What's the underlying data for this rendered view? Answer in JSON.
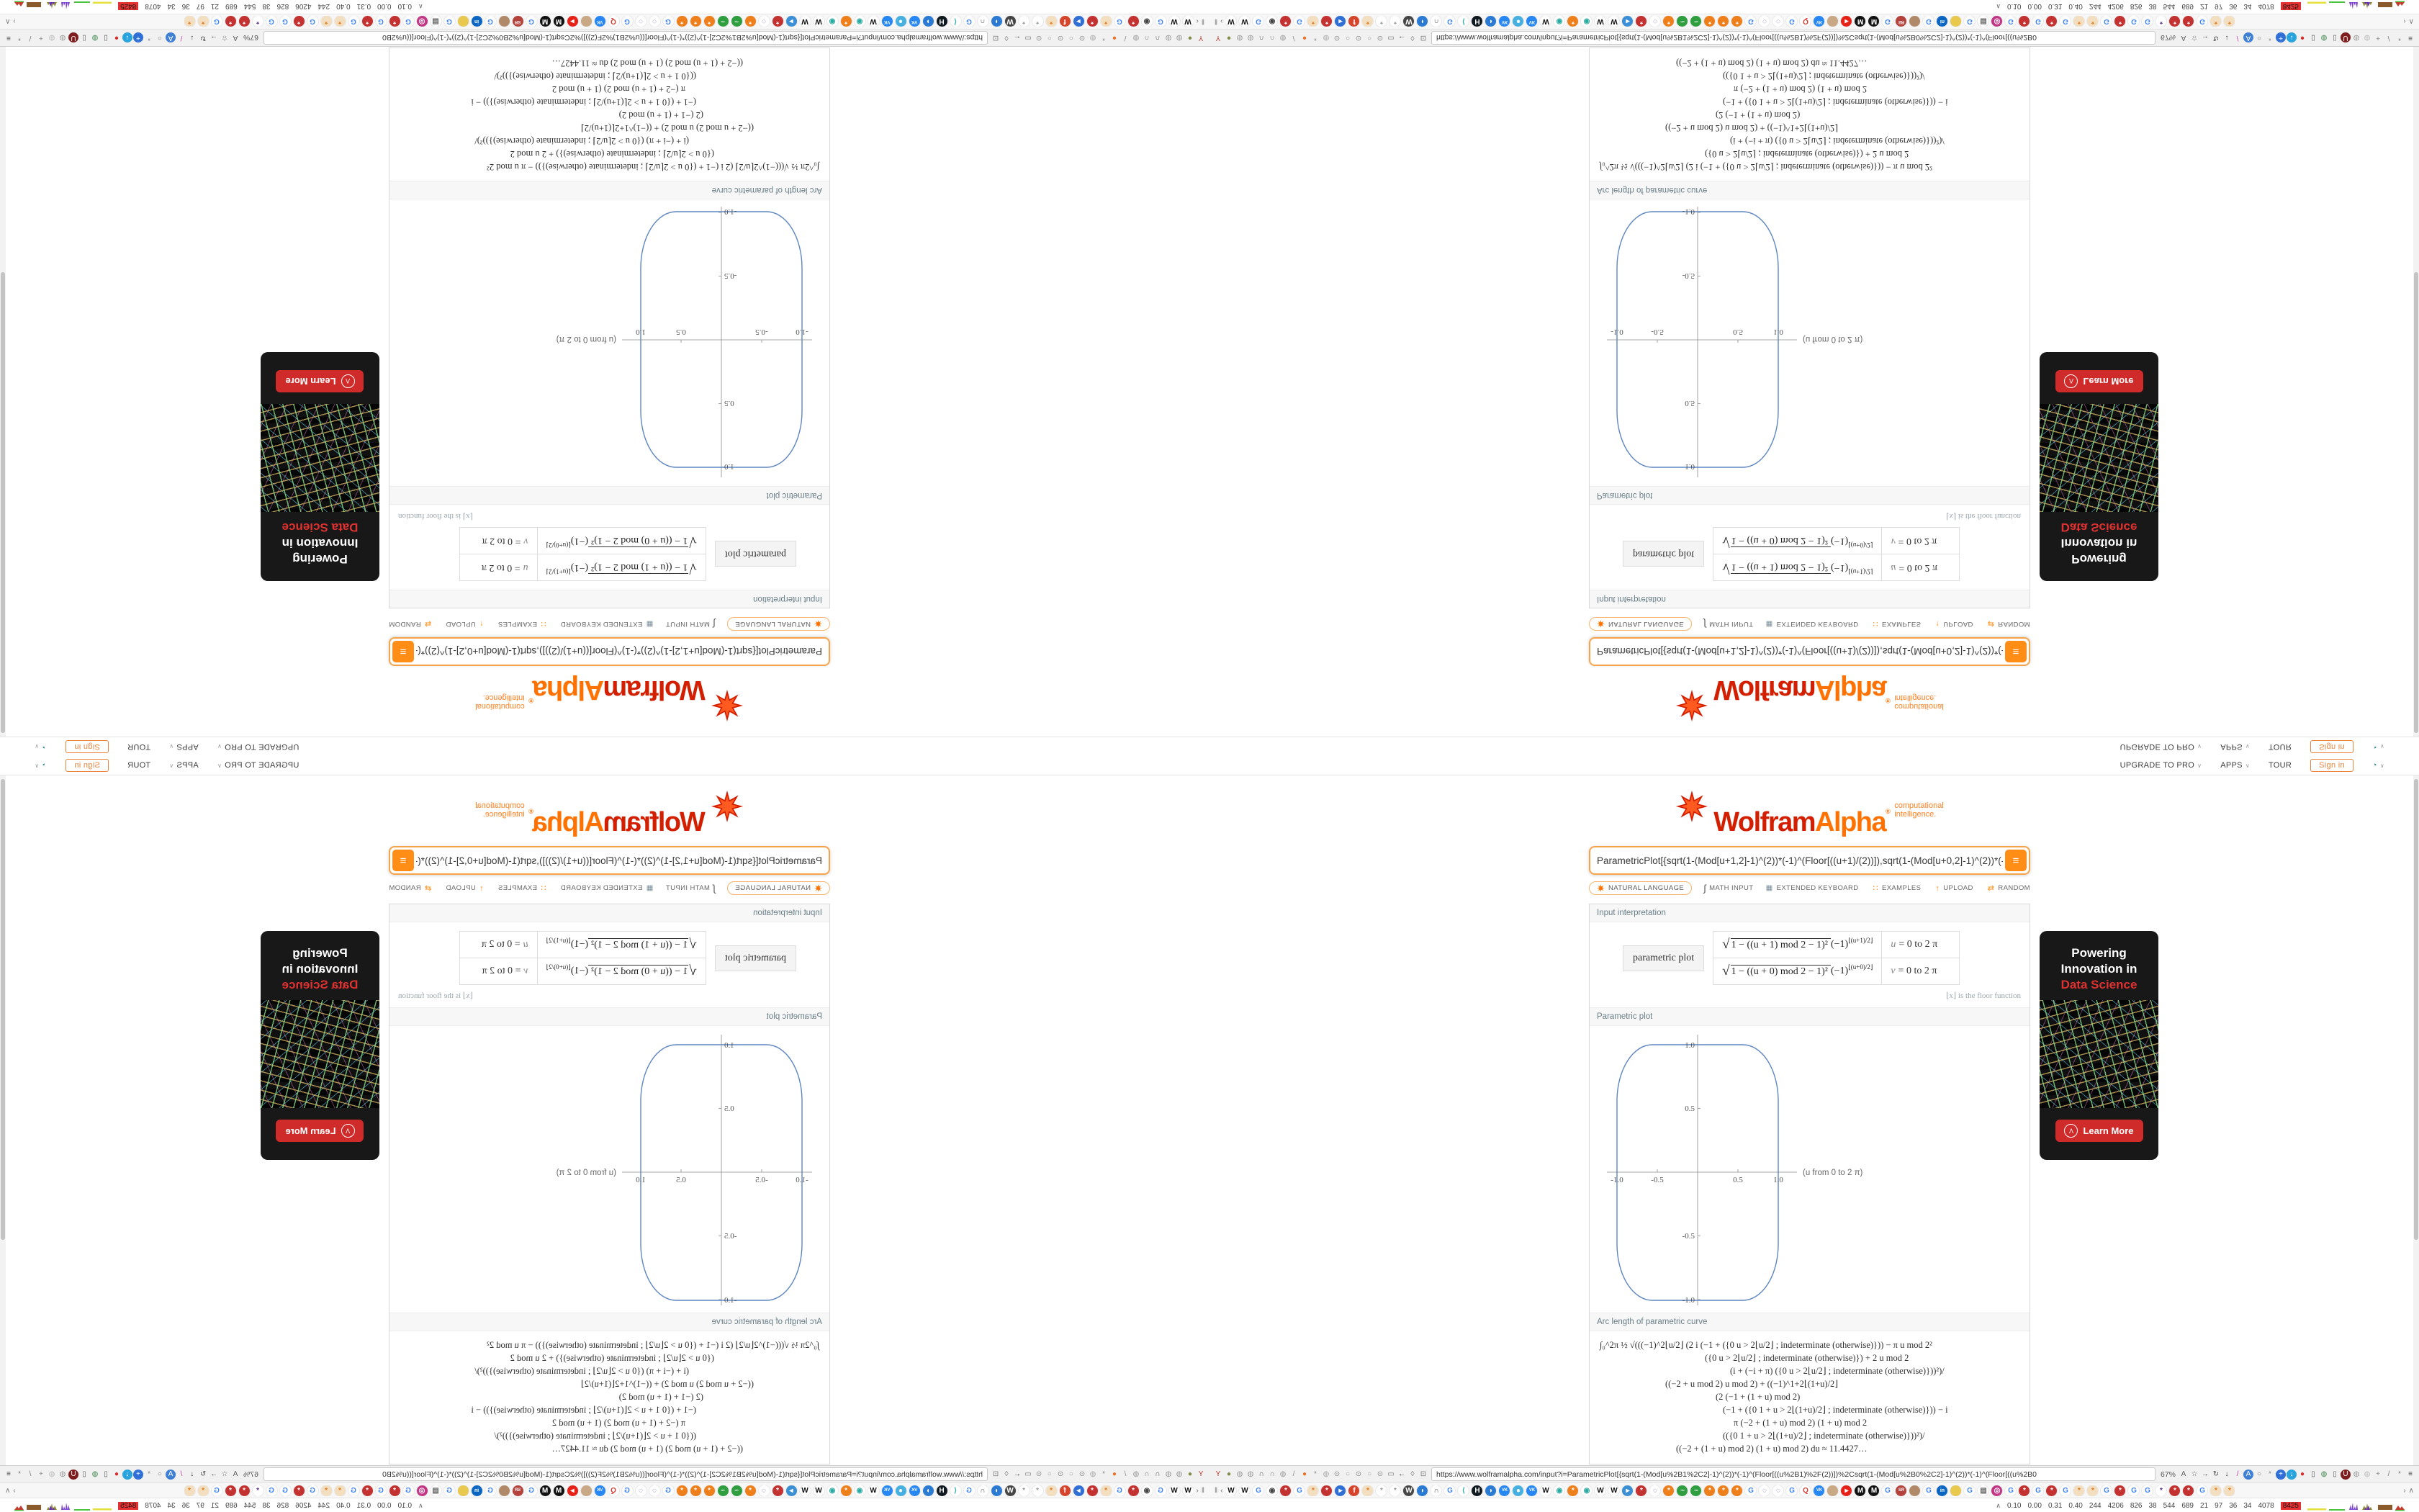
{
  "site_header": {
    "upgrade_to_pro": "UPGRADE TO PRO",
    "apps": "APPS",
    "tour": "TOUR",
    "sign_in": "Sign in"
  },
  "logo": {
    "wolfram": "Wolfram",
    "alpha": "Alpha",
    "reg": "®",
    "tagline1": "computational",
    "tagline2": "intelligence."
  },
  "query": {
    "text": "ParametricPlot[{sqrt(1-(Mod[u+1,2]-1)^(2))*(-1)^(Floor[((u+1)/(2))]),sqrt(1-(Mod[u+0,2]-1)^(2))*(-1)^(Floo",
    "compute_label": "≡"
  },
  "input_bar": {
    "natural_language": "NATURAL LANGUAGE",
    "math_input": "MATH INPUT",
    "extended_keyboard": "EXTENDED KEYBOARD",
    "examples": "EXAMPLES",
    "upload": "UPLOAD",
    "random": "RANDOM"
  },
  "icons": {
    "chevron": "∨",
    "globe": "◔",
    "math_input": "∫",
    "keyboard": "▦",
    "examples": "∷",
    "upload": "↑",
    "random": "⇄",
    "bm_prev": "‖",
    "bm_back": "‹",
    "bm_more": "›",
    "bm_up": "∧",
    "monitor_up": "∧",
    "wolf": "Λ"
  },
  "pods": {
    "interp": {
      "title": "Input interpretation",
      "label": "parametric plot",
      "rows": [
        {
          "sqrt": "√",
          "body": "1 − ((u + 1) mod 2 − 1)²",
          "tail": " (−1)",
          "sup": "⌊(u+1)/2⌋",
          "var": "u",
          "range": "= 0 to 2 π"
        },
        {
          "sqrt": "√",
          "body": "1 − ((u + 0) mod 2 − 1)²",
          "tail": " (−1)",
          "sup": "⌊(u+0)/2⌋",
          "var": "v",
          "range": "= 0 to 2 π"
        }
      ],
      "note": "⌊x⌋ is the floor function"
    },
    "plot": {
      "title": "Parametric plot",
      "xlabel": "(u from 0 to 2 π)",
      "xt": [
        "-1.0",
        "-0.5",
        "0.5",
        "1.0"
      ],
      "yt": [
        "-1.0",
        "-0.5",
        "0.5",
        "1.0"
      ],
      "chart_data": {
        "type": "line",
        "title": "Parametric plot",
        "x_range": [
          -1,
          1
        ],
        "y_range": [
          -1,
          1
        ],
        "u_range": "0 to 2 pi",
        "curve": "rounded square through (1,0),(0.97,0.66),(0.87,0.87),(0.66,0.97),(0,1) and symmetric points",
        "color": "#5f86c0"
      }
    },
    "arc": {
      "title": "Arc length of parametric curve",
      "lines": [
        {
          "t": "∫₀^2π  ½ √(((−1)^2⌊u/2⌋ (2 i (−1 + ({0   u > 2⌊u/2⌋ ;  indeterminate  (otherwise)})) − π u mod 2²",
          "m": 4
        },
        {
          "t": "({0   u > 2⌊u/2⌋ ;  indeterminate  (otherwise)}) + 2 u mod 2",
          "m": 150
        },
        {
          "t": "(i + (−i + π) ({0   u > 2⌊u/2⌋ ;  indeterminate  (otherwise)}))²)/",
          "m": 185
        },
        {
          "t": "((−2 + u mod 2) u mod 2) + ((−1)^1+2⌊(1+u)/2⌋",
          "m": 95
        },
        {
          "t": "(2 (−1 + (1 + u) mod 2)",
          "m": 165
        },
        {
          "t": "(−1 + ({0   1 + u > 2⌊(1+u)/2⌋ ;  indeterminate  (otherwise)})) − i",
          "m": 175
        },
        {
          "t": "π (−2 + (1 + u) mod 2) (1 + u) mod 2",
          "m": 190
        },
        {
          "t": "(({0   1 + u > 2⌊(1+u)/2⌋ ;  indeterminate  (otherwise)}))²)/",
          "m": 175
        },
        {
          "t": "((−2 + (1 + u) mod 2) (1 + u) mod 2) du ≈ 11.4427…",
          "m": 110
        }
      ]
    }
  },
  "ad": {
    "line1": "Powering",
    "line2": "Innovation in",
    "line3": "Data Science",
    "cta": "Learn More"
  },
  "browser": {
    "url": "https://www.wolframalpha.com/input?i=ParametricPlot[{sqrt(1-(Mod[u%2B1%2C2]-1)^(2))*(-1)^(Floor[((u%2B1)%2F(2))])%2Csqrt(1-(Mod[u%2B0%2C2]-1)^(2))*(-1)^(Floor[((u%2B0",
    "zoom": "67%",
    "left_icons": [
      {
        "g": "Y",
        "c": "#c23b2e",
        "n": "pin-icon"
      },
      {
        "g": "●",
        "c": "#7d8b42",
        "n": "extension-icon"
      },
      {
        "g": "◍",
        "c": "#9a9a9a",
        "n": "globe-icon"
      },
      {
        "g": "◍",
        "c": "#9a9a9a",
        "n": "globe-icon"
      },
      {
        "g": "∩",
        "c": "#555555",
        "n": "gauge-icon"
      },
      {
        "g": "∩",
        "c": "#777777",
        "n": "gauge-icon"
      },
      {
        "g": "◍",
        "c": "#9a9a9a",
        "n": "globe-icon"
      },
      {
        "g": "/",
        "c": "#888888",
        "n": "wrench-icon"
      },
      {
        "g": "●",
        "c": "#e8732a",
        "n": "firefox-icon"
      },
      {
        "g": "*",
        "c": "#8a8a8a",
        "n": "gear-icon"
      },
      {
        "g": "◍",
        "c": "#aaaaaa",
        "n": "globe-icon"
      },
      {
        "g": "⊙",
        "c": "#888888",
        "n": "tab-dot-icon"
      },
      {
        "g": "○",
        "c": "#999999",
        "n": "tab-dot-icon"
      },
      {
        "g": "⊙",
        "c": "#888888",
        "n": "tab-dot-icon"
      },
      {
        "g": "○",
        "c": "#999999",
        "n": "tab-dot-icon"
      },
      {
        "g": "⊙",
        "c": "#888888",
        "n": "tab-dot-icon"
      },
      {
        "g": "▭",
        "c": "#777777",
        "n": "folder-icon"
      },
      {
        "g": "←",
        "c": "#444444",
        "n": "back-icon"
      },
      {
        "g": "◊",
        "c": "#777777",
        "n": "shield-icon"
      },
      {
        "g": "⊡",
        "c": "#777777",
        "n": "lock-icon"
      }
    ],
    "right_icons": [
      {
        "g": "A",
        "c": "#666666",
        "n": "translate-icon"
      },
      {
        "g": "☆",
        "c": "#666666",
        "n": "bookmark-star-icon"
      },
      {
        "g": "→",
        "c": "#444444",
        "n": "forward-icon"
      },
      {
        "g": "↻",
        "c": "#444444",
        "n": "reload-icon"
      },
      {
        "g": "↓",
        "c": "#333333",
        "n": "download-icon"
      },
      {
        "g": "/",
        "c": "#c13ba0",
        "n": "brush-icon"
      },
      {
        "g": "A",
        "b": "#3f7fd4",
        "c": "#ffffff",
        "n": "translate-ext-icon"
      },
      {
        "g": "○",
        "c": "#777777",
        "n": "mouse-icon"
      },
      {
        "g": "*",
        "c": "#888888",
        "n": "gear-icon"
      },
      {
        "g": "+",
        "b": "#2f6fd6",
        "c": "#ffffff",
        "n": "add-ext-icon"
      },
      {
        "g": "↓",
        "b": "#28a3dd",
        "c": "#ffffff",
        "n": "idm-icon"
      },
      {
        "g": "●",
        "c": "#d62b2b",
        "n": "record-icon"
      },
      {
        "g": "▯",
        "c": "#555555",
        "n": "trash-icon"
      },
      {
        "g": "◍",
        "c": "#3f8a4f",
        "n": "globe-color-icon"
      },
      {
        "g": "▯",
        "c": "#666666",
        "n": "trash-icon"
      },
      {
        "g": "U",
        "b": "#7e1d1d",
        "c": "#ffffff",
        "n": "ublock-icon"
      },
      {
        "g": "◍",
        "c": "#999999",
        "n": "shield-gray-icon"
      },
      {
        "g": "◍",
        "c": "#bbbbbb",
        "n": "globe-gray-icon"
      },
      {
        "g": "+",
        "c": "#888888",
        "n": "puzzle-icon"
      },
      {
        "g": "/",
        "c": "#777777",
        "n": "wrench-icon"
      },
      {
        "g": "*",
        "c": "#777777",
        "n": "gear-icon"
      },
      {
        "g": "≡",
        "c": "#444444",
        "n": "menu-icon"
      }
    ],
    "bookmarks": [
      {
        "g": "W",
        "c": "#111111",
        "n": "bookmark-favicon"
      },
      {
        "g": "W",
        "c": "#111111",
        "n": "bookmark-favicon"
      },
      {
        "g": "G",
        "c": "#4285f4",
        "n": "bookmark-favicon"
      },
      {
        "g": "◉",
        "c": "#444444",
        "n": "bookmark-favicon"
      },
      {
        "g": "*",
        "b": "#c43131",
        "c": "#ffffff",
        "n": "bookmark-favicon"
      },
      {
        "g": "G",
        "c": "#4285f4",
        "n": "bookmark-favicon"
      },
      {
        "g": "*",
        "b": "#f3dfc0",
        "c": "#e07b1f",
        "n": "bookmark-favicon"
      },
      {
        "g": "*",
        "b": "#c43131",
        "c": "#ffffff",
        "n": "bookmark-favicon"
      },
      {
        "g": "▸",
        "b": "#2f6fd6",
        "c": "#ffffff",
        "n": "bookmark-favicon"
      },
      {
        "g": "f",
        "b": "#d6452b",
        "c": "#ffffff",
        "n": "bookmark-favicon"
      },
      {
        "g": "*",
        "b": "#f3dfc0",
        "c": "#e07b1f",
        "n": "bookmark-favicon"
      },
      {
        "g": "*",
        "c": "#999999",
        "n": "bookmark-favicon"
      },
      {
        "g": "*",
        "c": "#999999",
        "n": "bookmark-favicon"
      },
      {
        "g": "W",
        "b": "#464646",
        "c": "#ffffff",
        "n": "bookmark-favicon"
      },
      {
        "g": "◗",
        "b": "#2b7bd4",
        "c": "#ffffff",
        "n": "bookmark-favicon"
      },
      {
        "g": "∩",
        "c": "#555555",
        "n": "bookmark-favicon"
      },
      {
        "g": "G",
        "c": "#4285f4",
        "n": "bookmark-favicon"
      },
      {
        "g": "⟨",
        "c": "#2aa9a0",
        "n": "bookmark-favicon"
      },
      {
        "g": "H",
        "b": "#101820",
        "c": "#ffffff",
        "n": "bookmark-favicon"
      },
      {
        "g": "◗",
        "b": "#2b7bd4",
        "c": "#ffffff",
        "n": "bookmark-favicon"
      },
      {
        "g": "VK",
        "b": "#2787f5",
        "c": "#ffffff",
        "w": 6,
        "n": "bookmark-favicon"
      },
      {
        "g": "●",
        "b": "#46b1e1",
        "c": "#ffffff",
        "n": "bookmark-favicon"
      },
      {
        "g": "VK",
        "b": "#2787f5",
        "c": "#ffffff",
        "w": 6,
        "n": "bookmark-favicon"
      },
      {
        "g": "W",
        "c": "#111111",
        "n": "bookmark-favicon"
      },
      {
        "g": "◉",
        "c": "#2aa9a0",
        "n": "bookmark-favicon"
      },
      {
        "g": "*",
        "b": "#ef7f1a",
        "c": "#ffffff",
        "n": "bookmark-favicon"
      },
      {
        "g": "◉",
        "c": "#2aa9a0",
        "n": "bookmark-favicon"
      },
      {
        "g": "W",
        "c": "#111111",
        "n": "bookmark-favicon"
      },
      {
        "g": "W",
        "c": "#111111",
        "n": "bookmark-favicon"
      },
      {
        "g": "▸",
        "b": "#3b8fd4",
        "c": "#ffffff",
        "n": "bookmark-favicon"
      },
      {
        "g": "*",
        "b": "#c43131",
        "c": "#ffffff",
        "n": "bookmark-favicon"
      },
      {
        "g": "◌",
        "c": "#5b4a9e",
        "n": "bookmark-favicon"
      },
      {
        "g": "*",
        "b": "#ef7f1a",
        "c": "#ffffff",
        "n": "bookmark-favicon"
      },
      {
        "g": "~",
        "b": "#2e9e3f",
        "c": "#ffffff",
        "n": "bookmark-favicon"
      },
      {
        "g": "~",
        "b": "#2e9e3f",
        "c": "#ffffff",
        "n": "bookmark-favicon"
      },
      {
        "g": "*",
        "b": "#ef7f1a",
        "c": "#ffffff",
        "n": "bookmark-favicon"
      },
      {
        "g": "*",
        "b": "#ef7f1a",
        "c": "#ffffff",
        "n": "bookmark-favicon"
      },
      {
        "g": "*",
        "b": "#ef7f1a",
        "c": "#ffffff",
        "n": "bookmark-favicon"
      },
      {
        "g": "G",
        "c": "#4285f4",
        "n": "bookmark-favicon"
      },
      {
        "g": "◌",
        "c": "#5b4a9e",
        "n": "bookmark-favicon"
      },
      {
        "g": "◌",
        "c": "#5b4a9e",
        "n": "bookmark-favicon"
      },
      {
        "g": "G",
        "c": "#4285f4",
        "n": "bookmark-favicon"
      },
      {
        "g": "Q",
        "c": "#d63b2f",
        "n": "bookmark-favicon"
      },
      {
        "g": "VK",
        "b": "#2787f5",
        "c": "#ffffff",
        "w": 6,
        "n": "bookmark-favicon"
      },
      {
        "g": "●",
        "b": "#c9a886",
        "c": "#c9a886",
        "n": "bookmark-favicon"
      },
      {
        "g": "▸",
        "b": "#e62117",
        "c": "#ffffff",
        "n": "bookmark-favicon"
      },
      {
        "g": "M",
        "b": "#111111",
        "c": "#ffffff",
        "n": "bookmark-favicon"
      },
      {
        "g": "M",
        "b": "#111111",
        "c": "#ffffff",
        "n": "bookmark-favicon"
      },
      {
        "g": "G",
        "c": "#4285f4",
        "n": "bookmark-favicon"
      },
      {
        "g": "SR",
        "b": "#b5413b",
        "c": "#ffffff",
        "w": 6,
        "n": "bookmark-favicon"
      },
      {
        "g": "●",
        "b": "#b08968",
        "c": "#b08968",
        "n": "bookmark-favicon"
      },
      {
        "g": "G",
        "c": "#4285f4",
        "n": "bookmark-favicon"
      },
      {
        "g": "in",
        "b": "#0a66c2",
        "c": "#ffffff",
        "w": 7,
        "n": "bookmark-favicon"
      },
      {
        "g": "●",
        "b": "#e8c94e",
        "c": "#e8c94e",
        "n": "bookmark-favicon"
      },
      {
        "g": "G",
        "c": "#4285f4",
        "n": "bookmark-favicon"
      },
      {
        "g": "▤",
        "c": "#666666",
        "n": "bookmark-favicon"
      },
      {
        "g": "◎",
        "b": "#c13584",
        "c": "#ffffff",
        "n": "bookmark-favicon"
      },
      {
        "g": "G",
        "c": "#4285f4",
        "n": "bookmark-favicon"
      },
      {
        "g": "*",
        "b": "#c43131",
        "c": "#ffffff",
        "n": "bookmark-favicon"
      },
      {
        "g": "G",
        "c": "#4285f4",
        "n": "bookmark-favicon"
      },
      {
        "g": "*",
        "b": "#c43131",
        "c": "#ffffff",
        "n": "bookmark-favicon"
      },
      {
        "g": "G",
        "c": "#4285f4",
        "n": "bookmark-favicon"
      },
      {
        "g": "*",
        "b": "#f3dfc0",
        "c": "#e07b1f",
        "n": "bookmark-favicon"
      },
      {
        "g": "*",
        "b": "#f3dfc0",
        "c": "#e07b1f",
        "n": "bookmark-favicon"
      },
      {
        "g": "G",
        "c": "#4285f4",
        "n": "bookmark-favicon"
      },
      {
        "g": "*",
        "b": "#c43131",
        "c": "#ffffff",
        "n": "bookmark-favicon"
      },
      {
        "g": "G",
        "c": "#4285f4",
        "n": "bookmark-favicon"
      },
      {
        "g": "G",
        "c": "#4285f4",
        "n": "bookmark-favicon"
      },
      {
        "g": "*",
        "c": "#5b2d8e",
        "n": "bookmark-favicon"
      },
      {
        "g": "*",
        "b": "#c43131",
        "c": "#ffffff",
        "n": "bookmark-favicon"
      },
      {
        "g": "*",
        "b": "#c43131",
        "c": "#ffffff",
        "n": "bookmark-favicon"
      },
      {
        "g": "G",
        "c": "#4285f4",
        "n": "bookmark-favicon"
      },
      {
        "g": "*",
        "b": "#f3dfc0",
        "c": "#e07b1f",
        "n": "bookmark-favicon"
      },
      {
        "g": "*",
        "b": "#f3dfc0",
        "c": "#e07b1f",
        "n": "bookmark-favicon"
      }
    ]
  },
  "monitor": {
    "values": [
      {
        "t": "0.10"
      },
      {
        "t": "0.00"
      },
      {
        "t": "0.31"
      },
      {
        "t": "0.40"
      },
      {
        "t": "244"
      },
      {
        "t": "4206"
      },
      {
        "t": "826"
      },
      {
        "t": "38"
      },
      {
        "t": "544"
      },
      {
        "t": "689"
      },
      {
        "t": "21"
      },
      {
        "t": "97"
      },
      {
        "t": "36"
      },
      {
        "t": "34"
      },
      {
        "t": "4078"
      }
    ],
    "alert": "8425"
  },
  "colors": {
    "accent_orange": "#ff8d16",
    "wolfram_red": "#d41e00",
    "alpha_orange": "#ff7100",
    "plot_curve": "#5f86c0",
    "ad_red": "#cf2b2b",
    "monitor_alert_bg": "#e53030"
  }
}
